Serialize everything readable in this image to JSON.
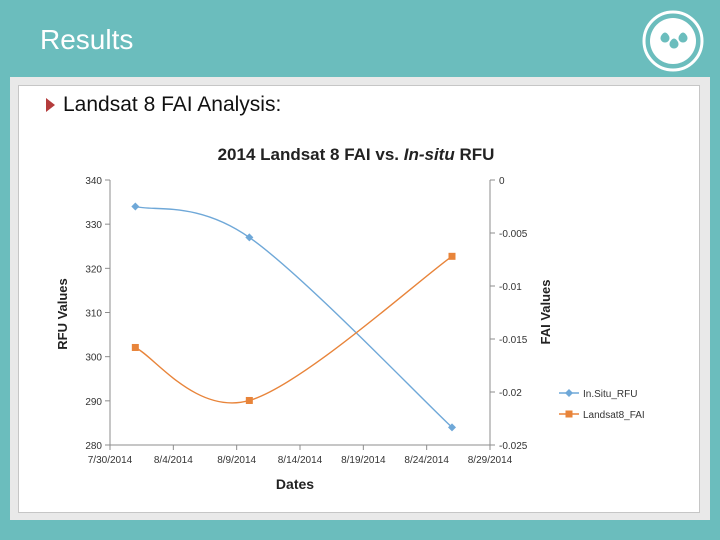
{
  "slide": {
    "title": "Results",
    "bullet": "Landsat 8 FAI Analysis:"
  },
  "colors": {
    "background": "#6bbdbd",
    "series_insitu": "#6fa8d8",
    "series_landsat": "#e8843a",
    "bullet_arrow": "#b43c3c"
  },
  "icons": {
    "logo": "water-drops-logo-icon",
    "bullet": "triangle-bullet-icon"
  },
  "chart_data": {
    "type": "line",
    "title_parts": [
      "2014 Landsat 8 FAI vs. ",
      "In-situ",
      " RFU"
    ],
    "xlabel": "Dates",
    "ylabel_left": "RFU Values",
    "ylabel_right": "FAI Values",
    "x_ticks": [
      "7/30/2014",
      "8/4/2014",
      "8/9/2014",
      "8/14/2014",
      "8/19/2014",
      "8/24/2014",
      "8/29/2014"
    ],
    "xlim": [
      "2014-07-30",
      "2014-08-29"
    ],
    "ylim_left": [
      280,
      340
    ],
    "y_ticks_left": [
      "340",
      "330",
      "320",
      "310",
      "300",
      "290",
      "280"
    ],
    "ylim_right": [
      -0.025,
      0
    ],
    "y_ticks_right": [
      "0",
      "-0.005",
      "-0.01",
      "-0.015",
      "-0.02",
      "-0.025"
    ],
    "grid": false,
    "legend_position": "right",
    "series": [
      {
        "name": "In.Situ_RFU",
        "axis": "left",
        "marker": "diamond",
        "x": [
          "2014-08-01",
          "2014-08-10",
          "2014-08-26"
        ],
        "y": [
          334,
          327,
          284
        ]
      },
      {
        "name": "Landsat8_FAI",
        "axis": "right",
        "marker": "square",
        "x": [
          "2014-08-01",
          "2014-08-10",
          "2014-08-26"
        ],
        "y": [
          -0.0158,
          -0.0208,
          -0.0072
        ]
      }
    ]
  }
}
